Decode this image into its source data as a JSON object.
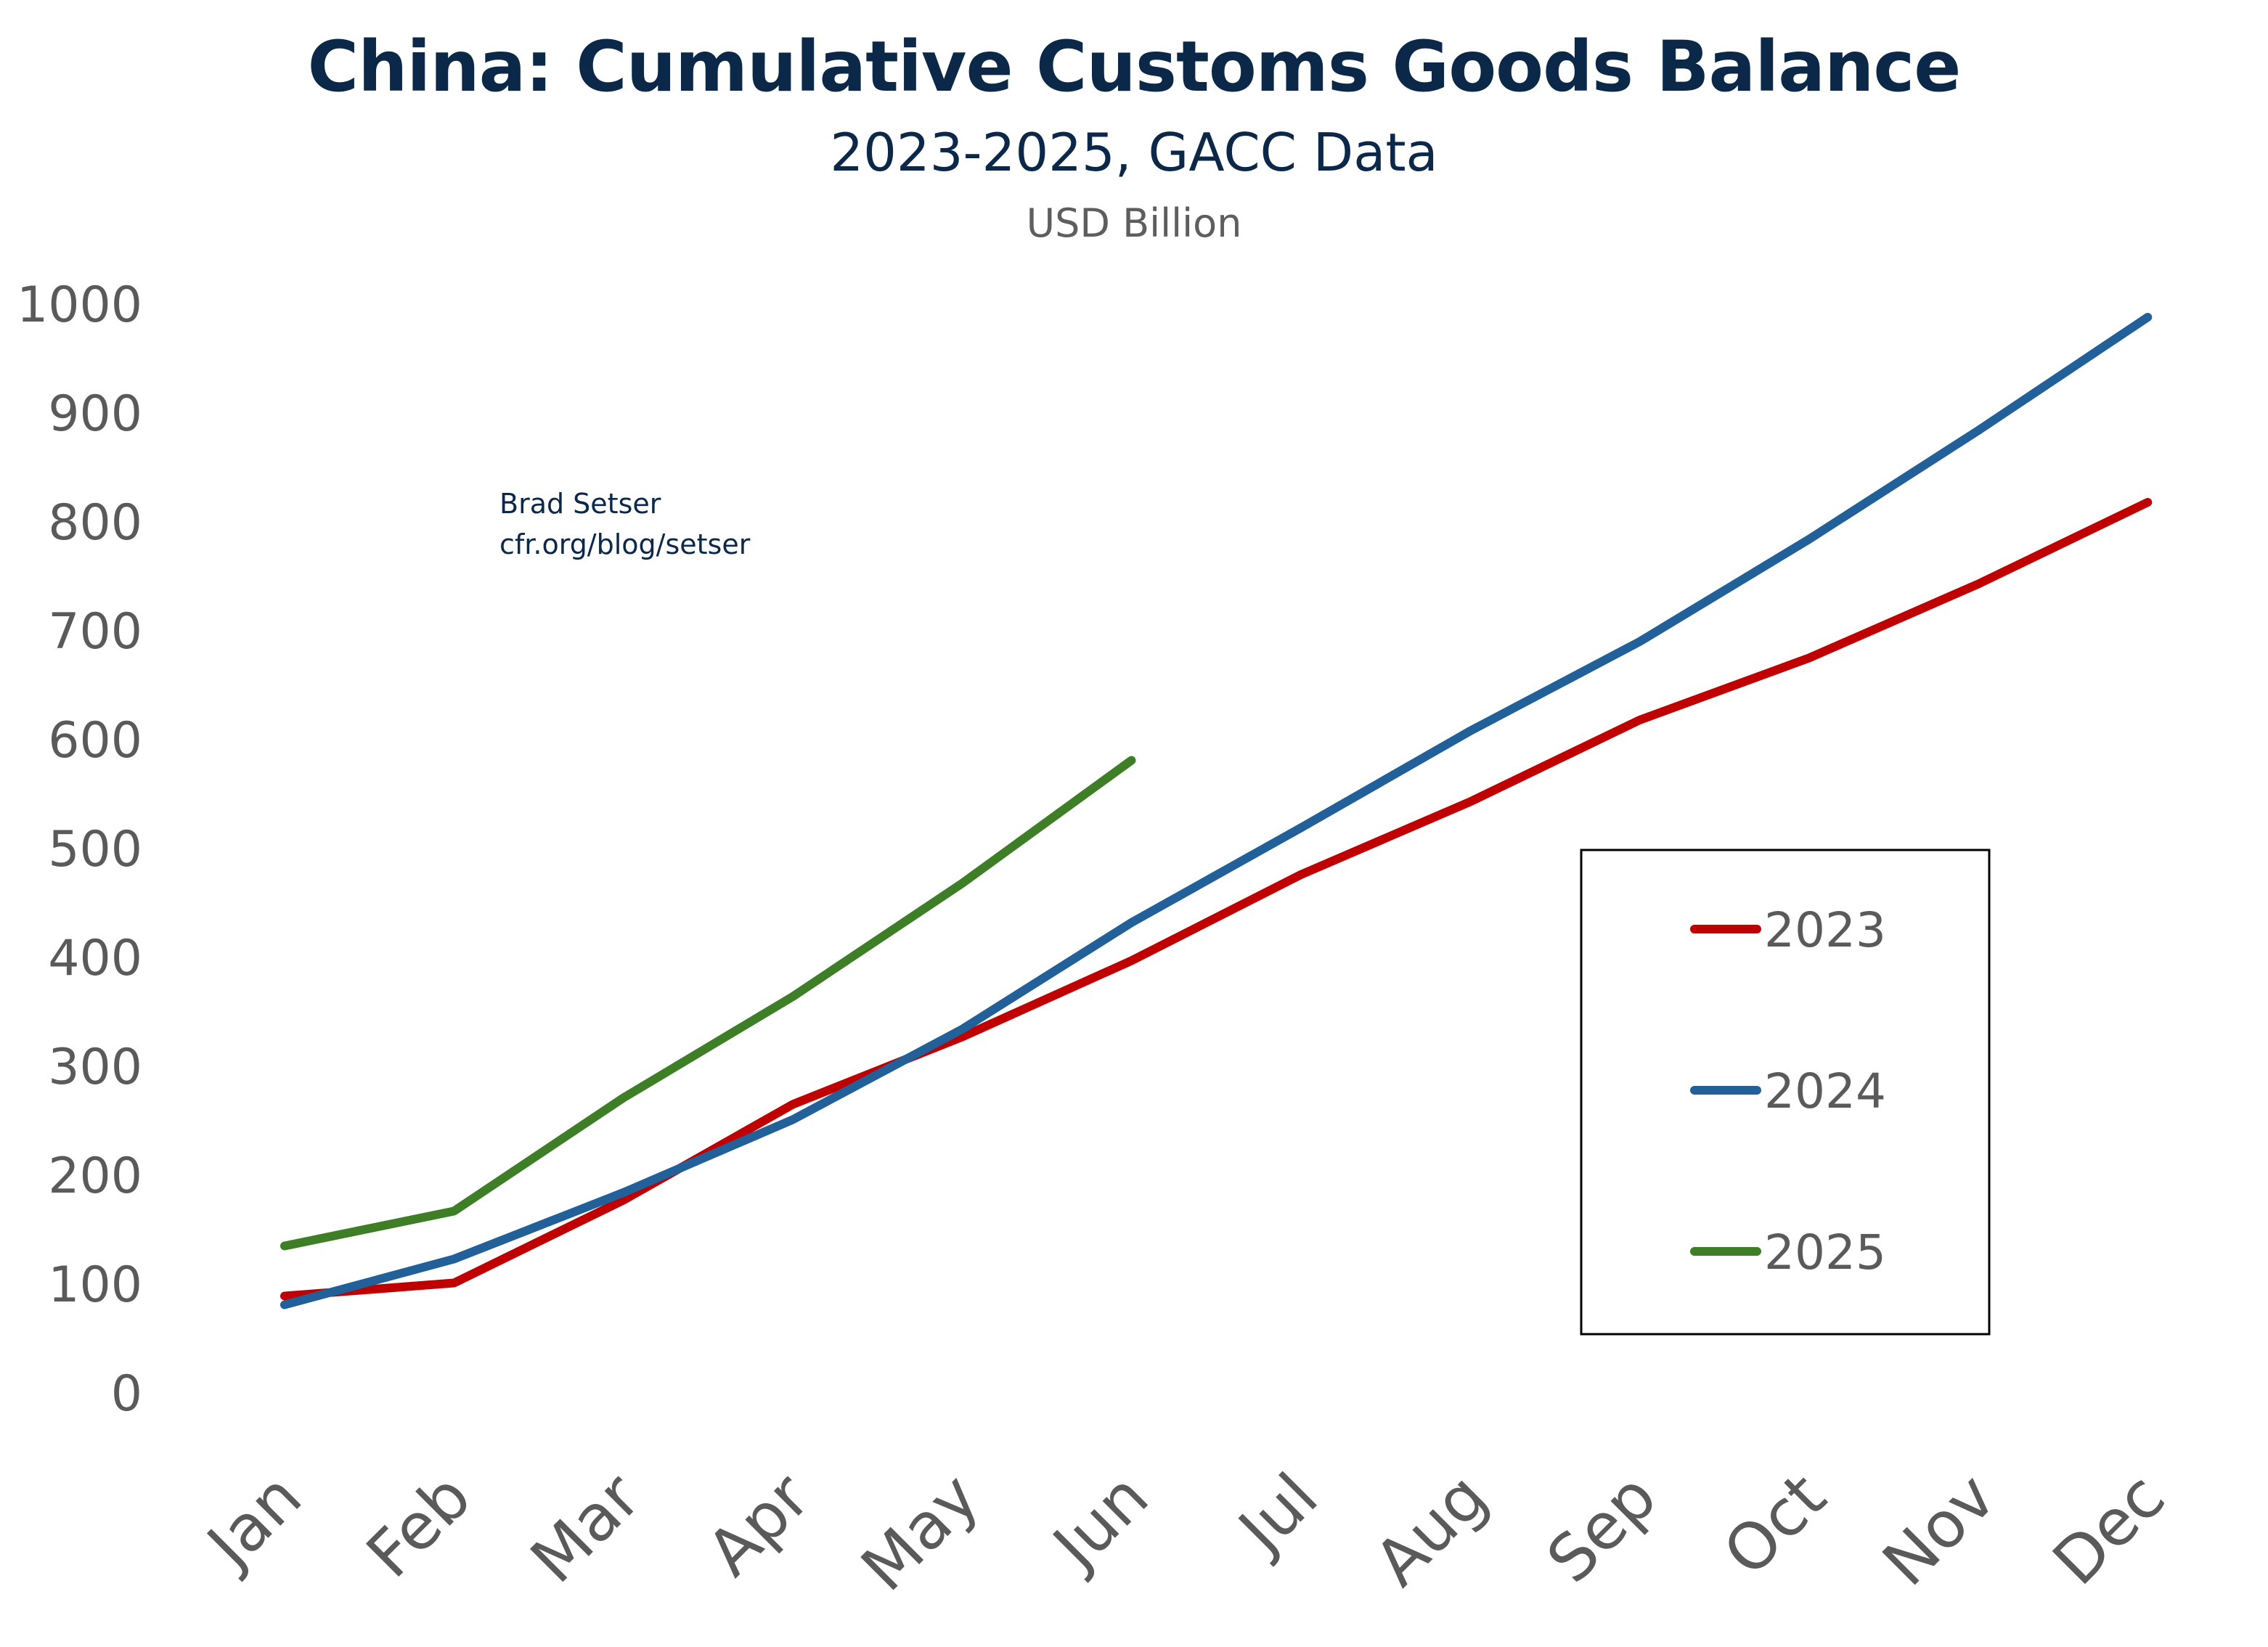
{
  "chart_data": {
    "type": "line",
    "title": "China: Cumulative Customs Goods Balance",
    "subtitle": "2023-2025, GACC Data",
    "ylabel": "USD Billion",
    "xlabel": "",
    "annotation": [
      "Brad Setser",
      "cfr.org/blog/setser"
    ],
    "categories": [
      "Jan",
      "Feb",
      "Mar",
      "Apr",
      "May",
      "Jun",
      "Jul",
      "Aug",
      "Sep",
      "Oct",
      "Nov",
      "Dec"
    ],
    "yticks": [
      0,
      100,
      200,
      300,
      400,
      500,
      600,
      700,
      800,
      900,
      1000
    ],
    "ylim": [
      0,
      1000
    ],
    "grid": false,
    "legend_position": "bottom-right",
    "series": [
      {
        "name": "2023",
        "color": "#c00000",
        "values": [
          89,
          101,
          177,
          265,
          327,
          397,
          476,
          543,
          618,
          675,
          743,
          818
        ]
      },
      {
        "name": "2024",
        "color": "#22609a",
        "values": [
          81,
          123,
          184,
          251,
          334,
          432,
          519,
          608,
          690,
          784,
          884,
          988
        ]
      },
      {
        "name": "2025",
        "color": "#3e7e26",
        "values": [
          135,
          167,
          271,
          364,
          468,
          581,
          null,
          null,
          null,
          null,
          null,
          null
        ]
      }
    ]
  }
}
